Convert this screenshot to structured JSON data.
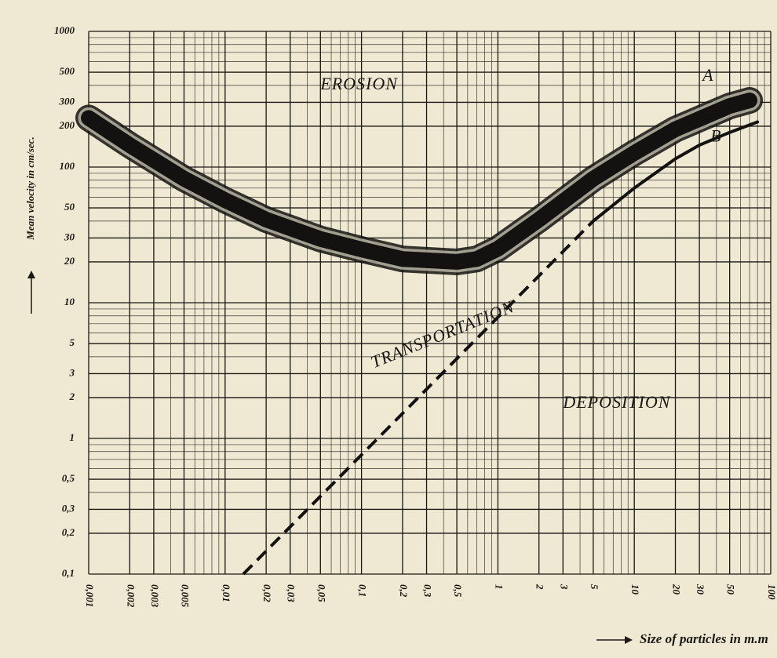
{
  "chart_data": {
    "type": "line",
    "xlabel": "Size of particles in m.m",
    "ylabel": "Mean velocity in cm/sec.",
    "xscale": "log",
    "yscale": "log",
    "grid": true,
    "xlim": [
      0.001,
      100
    ],
    "ylim": [
      0.1,
      1000
    ],
    "xticks": [
      {
        "value": 0.001,
        "label": "0,001"
      },
      {
        "value": 0.002,
        "label": "0,002"
      },
      {
        "value": 0.003,
        "label": "0,003"
      },
      {
        "value": 0.005,
        "label": "0,005"
      },
      {
        "value": 0.01,
        "label": "0,01"
      },
      {
        "value": 0.02,
        "label": "0,02"
      },
      {
        "value": 0.03,
        "label": "0,03"
      },
      {
        "value": 0.05,
        "label": "0,05"
      },
      {
        "value": 0.1,
        "label": "0,1"
      },
      {
        "value": 0.2,
        "label": "0,2"
      },
      {
        "value": 0.3,
        "label": "0,3"
      },
      {
        "value": 0.5,
        "label": "0,5"
      },
      1,
      2,
      3,
      5,
      10,
      20,
      30,
      50,
      100
    ],
    "yticks": [
      1000,
      500,
      300,
      200,
      100,
      50,
      30,
      20,
      10,
      5,
      3,
      2,
      1,
      {
        "value": 0.5,
        "label": "0,5"
      },
      {
        "value": 0.3,
        "label": "0,3"
      },
      {
        "value": 0.2,
        "label": "0,2"
      },
      {
        "value": 0.1,
        "label": "0,1"
      }
    ],
    "series": [
      {
        "name": "A",
        "color": "#141210",
        "band": true,
        "x": [
          0.001,
          0.002,
          0.005,
          0.01,
          0.02,
          0.05,
          0.1,
          0.2,
          0.5,
          0.7,
          1,
          2,
          5,
          10,
          20,
          50,
          70
        ],
        "values": [
          230,
          145,
          82,
          57,
          41,
          29.5,
          24.7,
          21,
          20,
          21,
          25,
          41,
          82,
          127,
          190,
          282,
          310
        ]
      },
      {
        "name": "B",
        "color": "#141210",
        "x": [
          5,
          10,
          20,
          30,
          50,
          80
        ],
        "values": [
          40,
          70,
          115,
          145,
          180,
          215
        ]
      },
      {
        "color": "#141210",
        "dash": true,
        "x": [
          0.0136,
          5
        ],
        "values": [
          0.1,
          40
        ]
      }
    ],
    "annotations": [
      {
        "text": "EROSION",
        "x": 0.05,
        "y": 400
      },
      {
        "text": "TRANSPORTATION",
        "x": 0.12,
        "y": 3.5,
        "angle": -22
      },
      {
        "text": "DEPOSITION",
        "x": 3,
        "y": 1.8
      }
    ]
  }
}
